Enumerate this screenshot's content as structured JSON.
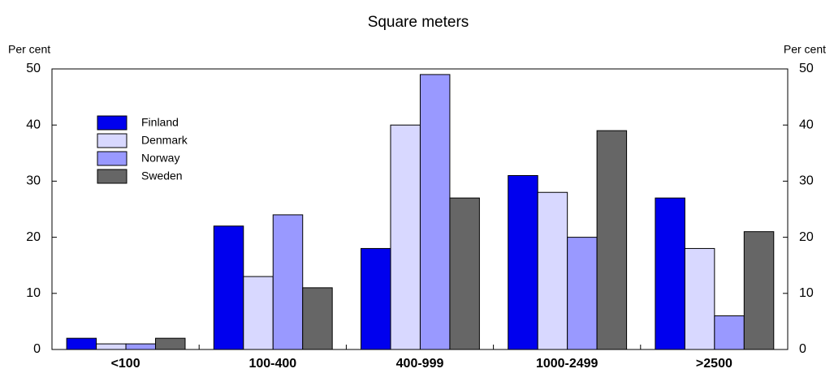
{
  "chart_data": {
    "type": "bar",
    "title": "Square meters",
    "ylabel": "Per cent",
    "y2label": "Per cent",
    "categories": [
      "<100",
      "100-400",
      "400-999",
      "1000-2499",
      ">2500"
    ],
    "series": [
      {
        "name": "Finland",
        "color": "#0000ee",
        "values": [
          2,
          22,
          18,
          31,
          27
        ]
      },
      {
        "name": "Denmark",
        "color": "#d8d8ff",
        "values": [
          1,
          13,
          40,
          28,
          18
        ]
      },
      {
        "name": "Norway",
        "color": "#9999ff",
        "values": [
          1,
          24,
          49,
          20,
          6
        ]
      },
      {
        "name": "Sweden",
        "color": "#666666",
        "values": [
          2,
          11,
          27,
          39,
          21
        ]
      }
    ],
    "ylim": [
      0,
      50
    ],
    "yticks": [
      0,
      10,
      20,
      30,
      40,
      50
    ],
    "y2lim": [
      0,
      50
    ],
    "y2ticks": [
      0,
      10,
      20,
      30,
      40,
      50
    ],
    "legend": "upper left"
  }
}
